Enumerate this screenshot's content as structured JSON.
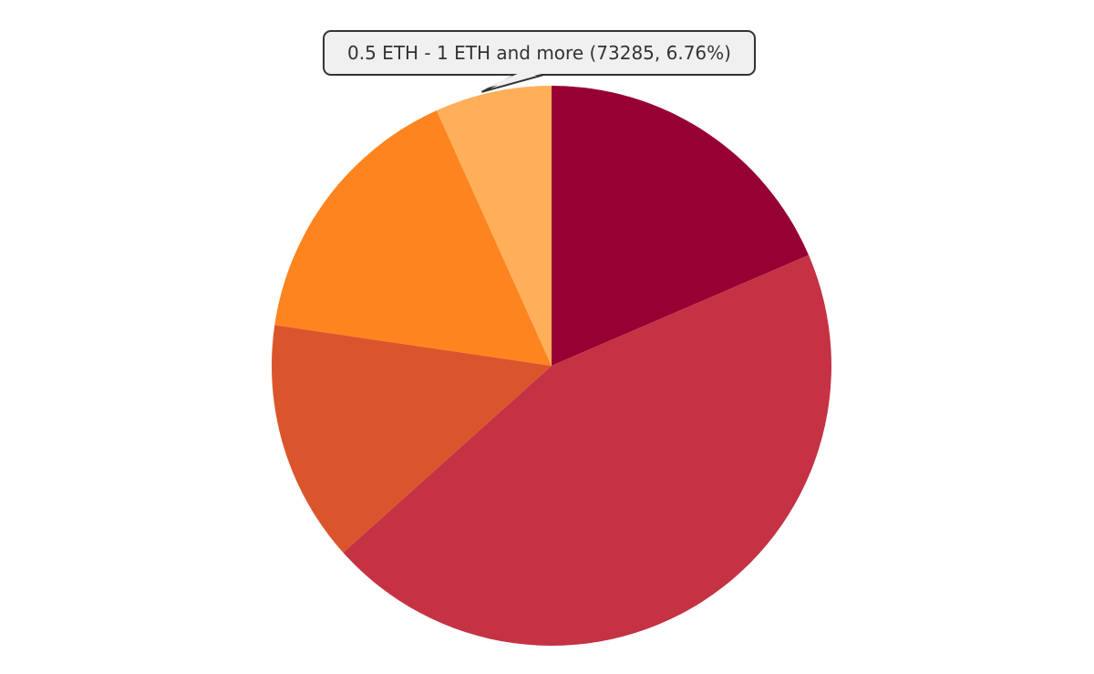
{
  "chart_data": {
    "type": "pie",
    "title": "",
    "slices": [
      {
        "value": 18.6,
        "color": "#970033"
      },
      {
        "value": 45.0,
        "color": "#c43244"
      },
      {
        "value": 14.0,
        "color": "#db552c"
      },
      {
        "value": 16.0,
        "color": "#fe841f"
      },
      {
        "value": 6.76,
        "color": "#ffaf5a",
        "label": "0.5 ETH - 1 ETH and more",
        "count": 73285
      }
    ],
    "start_angle_deg": 0,
    "direction": "clockwise",
    "tooltip": {
      "text": "0.5 ETH - 1 ETH and more (73285, 6.76%)",
      "slice_index": 4
    }
  }
}
